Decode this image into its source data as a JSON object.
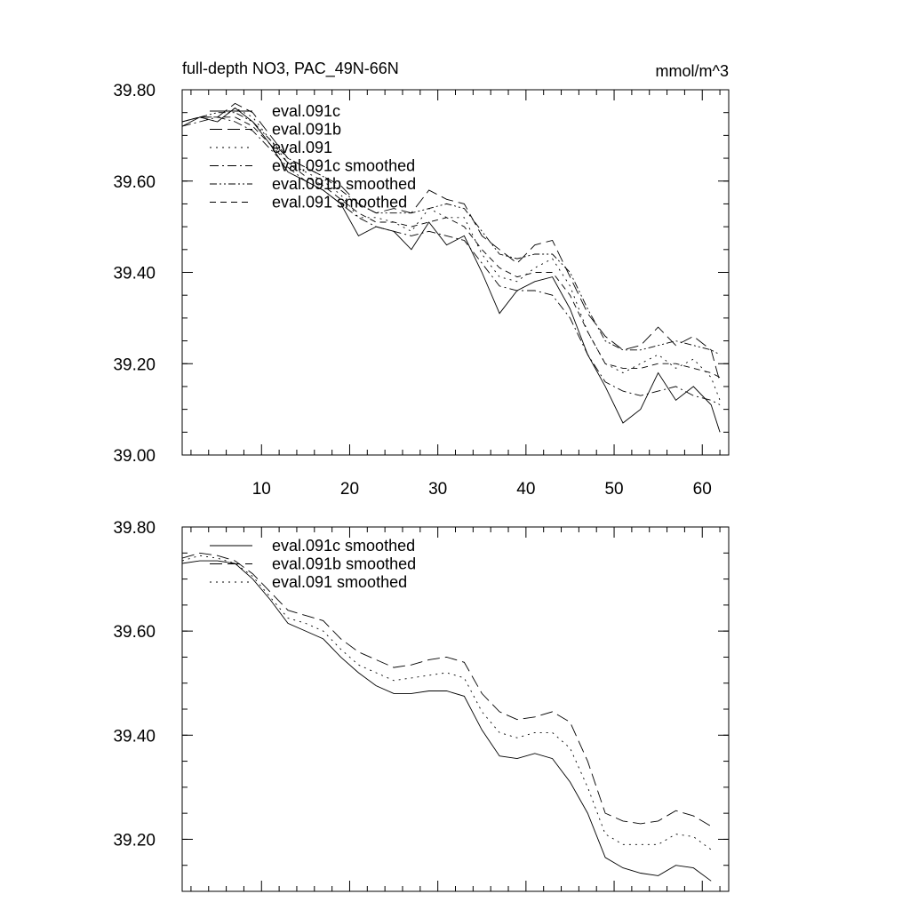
{
  "chart_data": [
    {
      "type": "line",
      "title": "full-depth NO3, PAC_49N-66N",
      "units": "mmol/m^3",
      "xlabel": "",
      "ylabel": "",
      "xlim": [
        1,
        63
      ],
      "ylim": [
        39.0,
        39.8
      ],
      "xticks": [
        10,
        20,
        30,
        40,
        50,
        60
      ],
      "xtick_labels": [
        "10",
        "20",
        "30",
        "40",
        "50",
        "60"
      ],
      "yticks": [
        39.0,
        39.2,
        39.4,
        39.6,
        39.8
      ],
      "ytick_labels": [
        "39.00",
        "39.20",
        "39.40",
        "39.60",
        "39.80"
      ],
      "legend_position": "top-left",
      "x": [
        1,
        3,
        5,
        7,
        9,
        11,
        13,
        15,
        17,
        19,
        21,
        23,
        25,
        27,
        29,
        31,
        33,
        35,
        37,
        39,
        41,
        43,
        45,
        47,
        49,
        51,
        53,
        55,
        57,
        59,
        61,
        62
      ],
      "series": [
        {
          "name": "eval.091c",
          "dash": "solid",
          "values": [
            39.72,
            39.74,
            39.73,
            39.76,
            39.73,
            39.68,
            39.62,
            39.6,
            39.58,
            39.55,
            39.48,
            39.5,
            39.49,
            39.45,
            39.51,
            39.46,
            39.48,
            39.4,
            39.31,
            39.36,
            39.38,
            39.39,
            39.32,
            39.22,
            39.15,
            39.07,
            39.1,
            39.18,
            39.12,
            39.15,
            39.11,
            39.05
          ]
        },
        {
          "name": "eval.091b",
          "dash": "long-dash",
          "values": [
            39.73,
            39.74,
            39.74,
            39.77,
            39.75,
            39.7,
            39.65,
            39.63,
            39.61,
            39.59,
            39.55,
            39.53,
            39.54,
            39.53,
            39.58,
            39.56,
            39.55,
            39.48,
            39.45,
            39.42,
            39.46,
            39.47,
            39.39,
            39.31,
            39.26,
            39.23,
            39.24,
            39.28,
            39.24,
            39.26,
            39.23,
            39.16
          ]
        },
        {
          "name": "eval.091",
          "dash": "dotted",
          "values": [
            39.73,
            39.74,
            39.73,
            39.76,
            39.74,
            39.69,
            39.64,
            39.62,
            39.6,
            39.57,
            39.52,
            39.52,
            39.51,
            39.49,
            39.54,
            39.52,
            39.52,
            39.44,
            39.39,
            39.38,
            39.41,
            39.43,
            39.37,
            39.27,
            39.2,
            39.18,
            39.2,
            39.22,
            39.19,
            39.21,
            39.17,
            39.12
          ]
        },
        {
          "name": "eval.091c smoothed",
          "dash": "dash-dot",
          "values": [
            39.72,
            39.73,
            39.74,
            39.73,
            39.71,
            39.67,
            39.63,
            39.6,
            39.58,
            39.55,
            39.52,
            39.5,
            39.49,
            39.48,
            39.49,
            39.48,
            39.47,
            39.42,
            39.37,
            39.36,
            39.36,
            39.35,
            39.3,
            39.22,
            39.16,
            39.14,
            39.13,
            39.14,
            39.15,
            39.13,
            39.12,
            39.11
          ]
        },
        {
          "name": "eval.091b smoothed",
          "dash": "dash-dot-dot",
          "values": [
            39.73,
            39.74,
            39.75,
            39.75,
            39.73,
            39.69,
            39.65,
            39.63,
            39.61,
            39.58,
            39.55,
            39.53,
            39.53,
            39.53,
            39.54,
            39.55,
            39.54,
            39.49,
            39.44,
            39.43,
            39.44,
            39.44,
            39.4,
            39.32,
            39.25,
            39.23,
            39.23,
            39.24,
            39.25,
            39.24,
            39.23,
            39.22
          ]
        },
        {
          "name": "eval.091 smoothed",
          "dash": "medium-dash",
          "values": [
            39.73,
            39.74,
            39.74,
            39.74,
            39.72,
            39.68,
            39.64,
            39.61,
            39.59,
            39.56,
            39.53,
            39.51,
            39.51,
            39.5,
            39.51,
            39.52,
            39.5,
            39.45,
            39.41,
            39.39,
            39.4,
            39.4,
            39.35,
            39.27,
            39.2,
            39.19,
            39.19,
            39.2,
            39.2,
            39.19,
            39.18,
            39.17
          ]
        }
      ]
    },
    {
      "type": "line",
      "title": "",
      "xlabel": "",
      "ylabel": "",
      "xlim": [
        1,
        63
      ],
      "ylim": [
        39.1,
        39.8
      ],
      "xticks": [
        10,
        20,
        30,
        40,
        50,
        60
      ],
      "xtick_labels": [],
      "yticks": [
        39.2,
        39.4,
        39.6,
        39.8
      ],
      "ytick_labels": [
        "39.20",
        "39.40",
        "39.60",
        "39.80"
      ],
      "legend_position": "top-left",
      "x": [
        1,
        3,
        5,
        7,
        9,
        11,
        13,
        15,
        17,
        19,
        21,
        23,
        25,
        27,
        29,
        31,
        33,
        35,
        37,
        39,
        41,
        43,
        45,
        47,
        49,
        51,
        53,
        55,
        57,
        59,
        61
      ],
      "series": [
        {
          "name": "eval.091c smoothed",
          "dash": "solid",
          "values": [
            39.73,
            39.735,
            39.735,
            39.73,
            39.7,
            39.66,
            39.615,
            39.6,
            39.585,
            39.55,
            39.52,
            39.495,
            39.48,
            39.48,
            39.485,
            39.485,
            39.475,
            39.41,
            39.36,
            39.355,
            39.365,
            39.355,
            39.31,
            39.25,
            39.165,
            39.145,
            39.135,
            39.13,
            39.15,
            39.145,
            39.12
          ]
        },
        {
          "name": "eval.091b smoothed",
          "dash": "long-dash",
          "values": [
            39.74,
            39.75,
            39.745,
            39.735,
            39.71,
            39.675,
            39.64,
            39.63,
            39.62,
            39.585,
            39.56,
            39.545,
            39.53,
            39.535,
            39.545,
            39.55,
            39.54,
            39.48,
            39.445,
            39.43,
            39.435,
            39.445,
            39.425,
            39.35,
            39.25,
            39.235,
            39.23,
            39.235,
            39.255,
            39.245,
            39.225
          ]
        },
        {
          "name": "eval.091 smoothed",
          "dash": "dotted",
          "values": [
            39.735,
            39.745,
            39.74,
            39.73,
            39.705,
            39.665,
            39.625,
            39.615,
            39.6,
            39.565,
            39.535,
            39.52,
            39.505,
            39.51,
            39.515,
            39.52,
            39.51,
            39.445,
            39.405,
            39.395,
            39.405,
            39.405,
            39.375,
            39.3,
            39.21,
            39.19,
            39.19,
            39.19,
            39.21,
            39.205,
            39.18
          ]
        }
      ]
    }
  ]
}
